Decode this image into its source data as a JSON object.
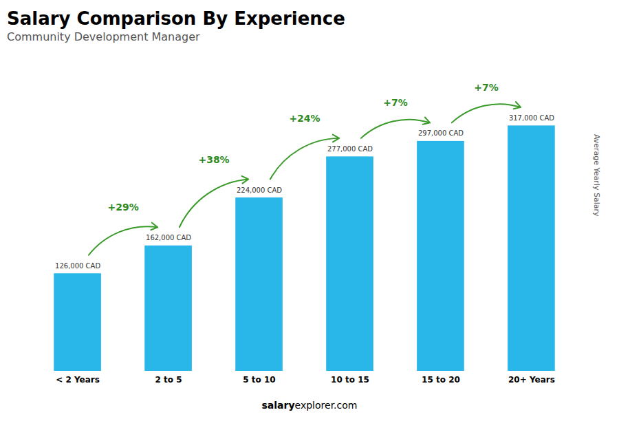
{
  "chart_data": {
    "type": "bar",
    "title": "Salary Comparison By Experience",
    "subtitle": "Community Development Manager",
    "y_label": "Average Yearly Salary",
    "categories": [
      "< 2 Years",
      "2 to 5",
      "5 to 10",
      "10 to 15",
      "15 to 20",
      "20+ Years"
    ],
    "values": [
      126000,
      162000,
      224000,
      277000,
      297000,
      317000
    ],
    "value_labels": [
      "126,000 CAD",
      "162,000 CAD",
      "224,000 CAD",
      "277,000 CAD",
      "297,000 CAD",
      "317,000 CAD"
    ],
    "data_labels": true,
    "annotations": [
      "+29%",
      "+38%",
      "+24%",
      "+7%",
      "+7%"
    ],
    "watermark": [
      "salary",
      "explorer.com"
    ],
    "color": "#29b6e8",
    "ylim": [
      0,
      400000
    ],
    "yticks": [],
    "tick_labels": "x",
    "grid": false
  }
}
